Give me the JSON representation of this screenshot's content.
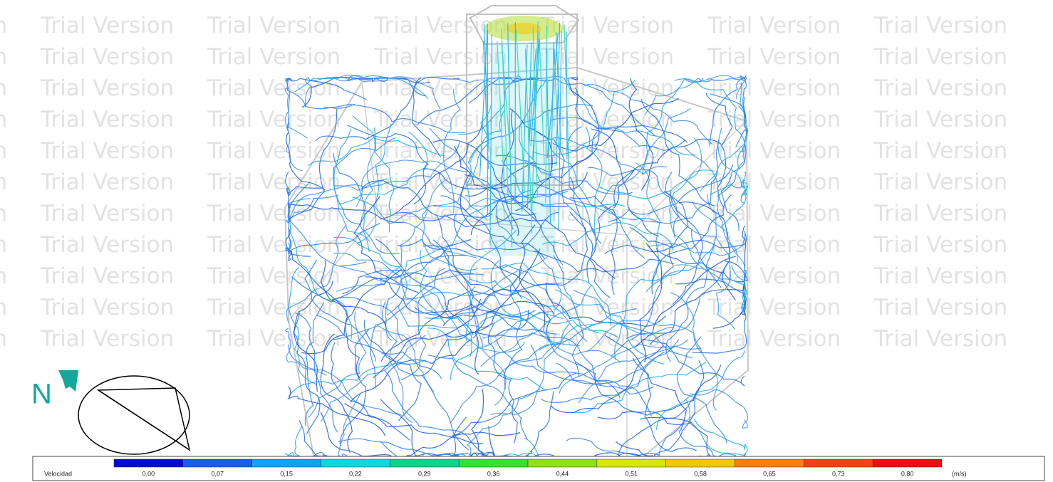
{
  "watermark": "Trial Version",
  "compass": {
    "label": "N"
  },
  "legend": {
    "title": "Velocidad",
    "ticks": [
      "0,00",
      "0,07",
      "0,15",
      "0,22",
      "0,29",
      "0,36",
      "0,44",
      "0,51",
      "0,58",
      "0,65",
      "0,73",
      "0,80"
    ],
    "colors": [
      "#0010c8",
      "#1560e6",
      "#16a0f0",
      "#14d4e4",
      "#14d08a",
      "#3ade38",
      "#8ee020",
      "#d8e414",
      "#f4c414",
      "#f28014",
      "#ee4412",
      "#e81010"
    ],
    "unit": "(m/s)"
  }
}
